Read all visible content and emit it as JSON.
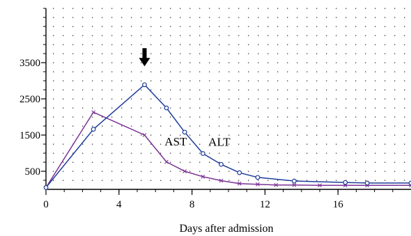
{
  "chart_data": {
    "type": "line",
    "title": "",
    "xlabel": "Days after admission",
    "ylabel": "",
    "xlim": [
      0,
      20
    ],
    "ylim": [
      0,
      5000
    ],
    "xticks": [
      0,
      4,
      8,
      12,
      16
    ],
    "yticks": [
      500,
      1500,
      2500,
      3500
    ],
    "grid": "dotted",
    "colors": {
      "AST": "#7b3294",
      "ALT": "#1f3c99",
      "axis": "#000000"
    },
    "series": [
      {
        "name": "AST",
        "marker": "x",
        "x": [
          0,
          2.6,
          5.4,
          6.6,
          7.6,
          8.6,
          9.6,
          10.6,
          11.6,
          12.6,
          13.6,
          15,
          16.4,
          17.6,
          20
        ],
        "y": [
          50,
          2130,
          1500,
          760,
          500,
          350,
          240,
          160,
          140,
          120,
          120,
          110,
          110,
          110,
          110
        ]
      },
      {
        "name": "ALT",
        "marker": "o",
        "x": [
          0,
          2.6,
          5.4,
          6.6,
          7.6,
          8.6,
          9.6,
          10.6,
          11.6,
          13.6,
          16.4,
          17.6,
          20
        ],
        "y": [
          50,
          1660,
          2890,
          2250,
          1580,
          990,
          690,
          460,
          330,
          230,
          190,
          175,
          175
        ]
      }
    ],
    "annotations": [
      {
        "text": "AST",
        "x": 6.5,
        "y": 1210
      },
      {
        "text": "ALT",
        "x": 8.9,
        "y": 1200
      }
    ],
    "arrow": {
      "x": 5.4,
      "y": 3400,
      "label": ""
    }
  }
}
